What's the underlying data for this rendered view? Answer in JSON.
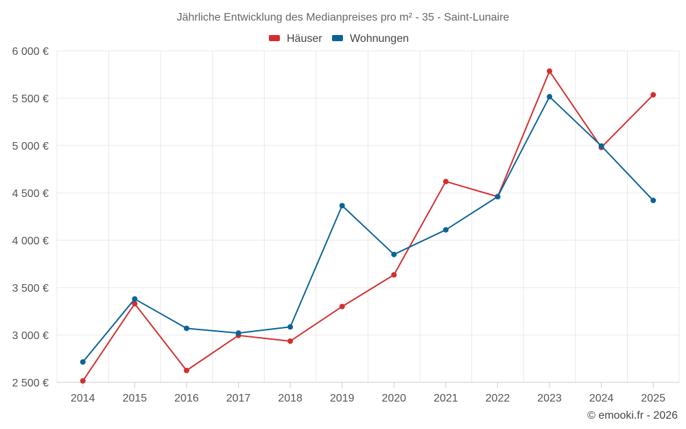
{
  "chart_data": {
    "type": "line",
    "title": "Jährliche Entwicklung des Medianpreises pro m² - 35 - Saint-Lunaire",
    "xlabel": "",
    "ylabel": "",
    "categories": [
      "2014",
      "2015",
      "2016",
      "2017",
      "2018",
      "2019",
      "2020",
      "2021",
      "2022",
      "2023",
      "2024",
      "2025"
    ],
    "ylim": [
      2500,
      6000
    ],
    "yticks": [
      2500,
      3000,
      3500,
      4000,
      4500,
      5000,
      5500,
      6000
    ],
    "ytick_labels": [
      "2 500 €",
      "3 000 €",
      "3 500 €",
      "4 000 €",
      "4 500 €",
      "5 000 €",
      "5 500 €",
      "6 000 €"
    ],
    "grid": true,
    "legend_position": "top-center",
    "series": [
      {
        "name": "Häuser",
        "color": "#d32f2f",
        "values": [
          2515,
          3330,
          2625,
          2995,
          2935,
          3300,
          3635,
          4620,
          4460,
          5785,
          4980,
          5535
        ]
      },
      {
        "name": "Wohnungen",
        "color": "#0a6496",
        "values": [
          2715,
          3380,
          3070,
          3020,
          3085,
          4365,
          3850,
          4110,
          4460,
          5515,
          4995,
          4420
        ]
      }
    ],
    "credit": "© emooki.fr - 2026"
  }
}
